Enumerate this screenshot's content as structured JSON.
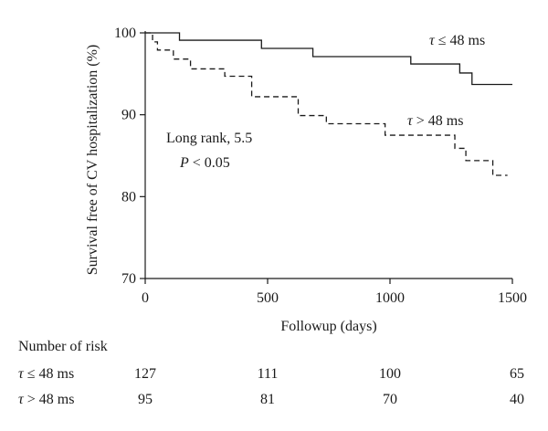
{
  "chart_data": {
    "type": "line",
    "title": "",
    "xlabel": "Followup (days)",
    "ylabel": "Survival free of CV hospitalization (%)",
    "xlim": [
      0,
      1500
    ],
    "ylim": [
      70,
      100
    ],
    "xticks": [
      "0",
      "500",
      "1000",
      "1500"
    ],
    "yticks": [
      "70",
      "80",
      "90",
      "100"
    ],
    "grid": false,
    "series": [
      {
        "name": "τ ≤ 48 ms",
        "style": "solid",
        "steps": [
          [
            0,
            100
          ],
          [
            140,
            99.1
          ],
          [
            475,
            98.1
          ],
          [
            685,
            97.1
          ],
          [
            1085,
            96.2
          ],
          [
            1285,
            95.1
          ],
          [
            1335,
            93.7
          ],
          [
            1500,
            93.7
          ]
        ]
      },
      {
        "name": "τ > 48 ms",
        "style": "dashed",
        "steps": [
          [
            0,
            100
          ],
          [
            30,
            98.9
          ],
          [
            50,
            97.9
          ],
          [
            115,
            96.8
          ],
          [
            185,
            95.6
          ],
          [
            325,
            94.7
          ],
          [
            435,
            92.2
          ],
          [
            625,
            89.9
          ],
          [
            740,
            88.9
          ],
          [
            980,
            87.5
          ],
          [
            1265,
            85.9
          ],
          [
            1310,
            84.4
          ],
          [
            1420,
            82.6
          ],
          [
            1480,
            82.6
          ]
        ]
      }
    ],
    "annotations": {
      "test_line1": "Long rank, 5.5",
      "test_line2_italic": "P",
      "test_line2_rest": " < 0.05"
    }
  },
  "legend_labels": {
    "s1_tau": "τ",
    "s1_rest": " ≤ 48 ms",
    "s2_tau": "τ",
    "s2_rest": " > 48 ms"
  },
  "risk_table": {
    "title": "Number of risk",
    "rows": [
      {
        "tau": "τ",
        "label": " ≤ 48 ms",
        "values": [
          "127",
          "111",
          "100",
          "65"
        ]
      },
      {
        "tau": "τ",
        "label": " > 48 ms",
        "values": [
          "95",
          "81",
          "70",
          "40"
        ]
      }
    ]
  }
}
